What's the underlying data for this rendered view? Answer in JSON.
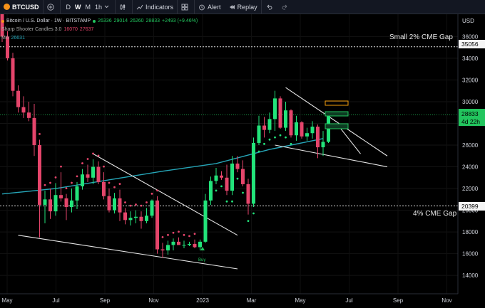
{
  "toolbar": {
    "symbol": "BTCUSD",
    "timeframes": [
      "D",
      "W",
      "M"
    ],
    "active_tf": "W",
    "interval": "1h",
    "indicators_label": "Indicators",
    "alert_label": "Alert",
    "replay_label": "Replay"
  },
  "legend": {
    "title": "Bitcoin / U.S. Dollar · 1W · BITSTAMP",
    "o": "26336",
    "h": "29014",
    "l": "26260",
    "c": "28833",
    "change": "+2493 (+9.46%)",
    "indicator1": "Sharp Shooter Candles 3.0",
    "ind1_val_a": "16070",
    "ind1_val_b": "27637",
    "indicator2": "MA",
    "ind2_val": "26631"
  },
  "annotations": {
    "small_gap": "Small 2% CME Gap",
    "gap4": "4% CME Gap",
    "buy": "Buy"
  },
  "price_tags": {
    "upper": "35056",
    "current": "28833",
    "countdown": "4d 22h",
    "lower": "20399",
    "currency": "USD"
  },
  "chart_data": {
    "type": "candlestick",
    "x_labels": [
      "May",
      "Jul",
      "Sep",
      "Nov",
      "2023",
      "Mar",
      "May",
      "Jul",
      "Sep",
      "Nov"
    ],
    "y_ticks": [
      14000,
      16000,
      18000,
      20000,
      22000,
      24000,
      26000,
      28000,
      30000,
      32000,
      34000,
      36000
    ],
    "ylim": [
      12700,
      37400
    ],
    "candles": [
      [
        38500,
        40000,
        35500,
        36000
      ],
      [
        36000,
        36500,
        33800,
        34000
      ],
      [
        34000,
        34500,
        30500,
        31000
      ],
      [
        31000,
        31500,
        29000,
        29500
      ],
      [
        29500,
        30500,
        28500,
        29000
      ],
      [
        29000,
        30000,
        28200,
        28500
      ],
      [
        28500,
        29800,
        25000,
        26000
      ],
      [
        26000,
        26500,
        17500,
        20500
      ],
      [
        20500,
        21800,
        18800,
        21000
      ],
      [
        21000,
        22000,
        19200,
        19900
      ],
      [
        19900,
        22500,
        19500,
        21400
      ],
      [
        21400,
        23500,
        20800,
        21100
      ],
      [
        21100,
        21500,
        19100,
        20300
      ],
      [
        20300,
        22000,
        19800,
        20900
      ],
      [
        20900,
        22600,
        20100,
        22200
      ],
      [
        22200,
        23800,
        21900,
        23300
      ],
      [
        23300,
        24200,
        22600,
        23000
      ],
      [
        23000,
        24700,
        22400,
        24000
      ],
      [
        24000,
        24500,
        22400,
        22600
      ],
      [
        22600,
        23500,
        21000,
        21300
      ],
      [
        21300,
        22000,
        19800,
        20000
      ],
      [
        20000,
        21600,
        19700,
        21100
      ],
      [
        21100,
        21900,
        19000,
        19800
      ],
      [
        19800,
        20200,
        18700,
        19100
      ],
      [
        19100,
        19900,
        18600,
        19300
      ],
      [
        19300,
        20000,
        18800,
        19400
      ],
      [
        19400,
        19900,
        18300,
        19000
      ],
      [
        19000,
        20200,
        18800,
        19500
      ],
      [
        19500,
        21000,
        19300,
        20900
      ],
      [
        20900,
        21300,
        16000,
        16400
      ],
      [
        16400,
        17000,
        15600,
        16300
      ],
      [
        16300,
        17200,
        15900,
        16800
      ],
      [
        16800,
        17400,
        16300,
        17100
      ],
      [
        17100,
        17500,
        16800,
        16800
      ],
      [
        16800,
        17200,
        16500,
        16800
      ],
      [
        16800,
        17100,
        16700,
        16900
      ],
      [
        16900,
        17300,
        16500,
        16600
      ],
      [
        16600,
        17300,
        16300,
        17100
      ],
      [
        17100,
        21500,
        17000,
        20900
      ],
      [
        20900,
        23100,
        20500,
        22700
      ],
      [
        22700,
        23900,
        22400,
        23200
      ],
      [
        23200,
        23600,
        22800,
        23000
      ],
      [
        23000,
        24200,
        21400,
        21800
      ],
      [
        21800,
        25000,
        21400,
        24300
      ],
      [
        24300,
        25000,
        23500,
        23800
      ],
      [
        23800,
        24600,
        22200,
        22400
      ],
      [
        22400,
        22900,
        19600,
        20600
      ],
      [
        20600,
        26700,
        20300,
        26200
      ],
      [
        26200,
        28700,
        26000,
        27800
      ],
      [
        27800,
        28600,
        26700,
        27400
      ],
      [
        27400,
        29000,
        27100,
        28400
      ],
      [
        28400,
        31000,
        27300,
        30300
      ],
      [
        30300,
        30500,
        27500,
        27600
      ],
      [
        27600,
        30000,
        27300,
        29200
      ],
      [
        29200,
        29300,
        26700,
        26900
      ],
      [
        26900,
        28700,
        26400,
        28100
      ],
      [
        28100,
        28200,
        26600,
        26800
      ],
      [
        26800,
        27600,
        26400,
        27100
      ],
      [
        27100,
        28200,
        26600,
        27700
      ],
      [
        27700,
        27900,
        24800,
        25800
      ],
      [
        25800,
        27300,
        25000,
        26300
      ],
      [
        26300,
        29000,
        26200,
        28800
      ]
    ],
    "ma_line": [
      [
        0,
        21500
      ],
      [
        10,
        22000
      ],
      [
        20,
        22800
      ],
      [
        30,
        23600
      ],
      [
        40,
        24300
      ],
      [
        50,
        25600
      ],
      [
        60,
        26600
      ]
    ],
    "trendlines": [
      {
        "from": [
          17,
          25200
        ],
        "to": [
          44,
          17700
        ]
      },
      {
        "from": [
          3,
          17700
        ],
        "to": [
          44,
          14600
        ]
      },
      {
        "from": [
          53,
          31300
        ],
        "to": [
          72,
          25000
        ]
      },
      {
        "from": [
          51,
          26000
        ],
        "to": [
          72,
          24000
        ]
      },
      {
        "from": [
          63,
          27700
        ],
        "to": [
          67,
          25200
        ]
      }
    ],
    "cme_gaps": [
      35056,
      20399
    ]
  }
}
